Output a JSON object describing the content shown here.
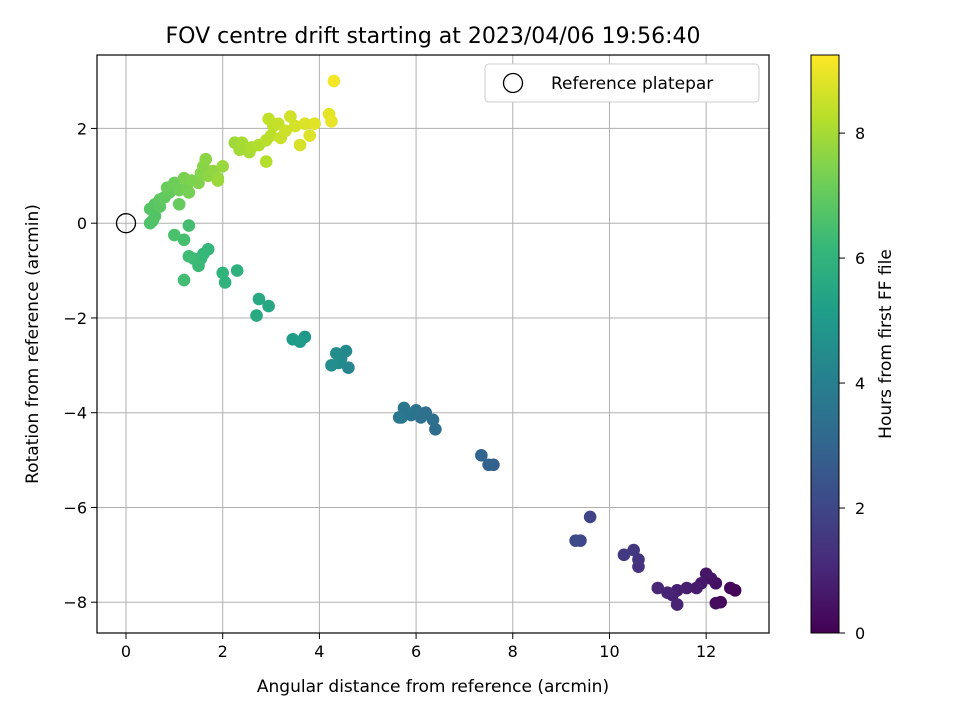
{
  "chart_data": {
    "type": "scatter",
    "title": "FOV centre drift starting at 2023/04/06 19:56:40",
    "xlabel": "Angular distance from reference (arcmin)",
    "ylabel": "Rotation from reference (arcmin)",
    "xlim": [
      -0.6,
      13.3
    ],
    "ylim": [
      -8.65,
      3.55
    ],
    "xticks": [
      0,
      2,
      4,
      6,
      8,
      10,
      12
    ],
    "yticks": [
      -8,
      -6,
      -4,
      -2,
      0,
      2
    ],
    "grid": true,
    "legend": {
      "placement": "top-right",
      "entries": [
        "Reference platepar"
      ]
    },
    "reference_point": {
      "x": 0,
      "y": 0
    },
    "colorbar": {
      "label": "Hours from first FF file",
      "range": [
        0,
        9.25
      ],
      "ticks": [
        0,
        2,
        4,
        6,
        8
      ],
      "colormap": [
        "#440154",
        "#482878",
        "#3e4989",
        "#31688e",
        "#26828e",
        "#1f9e89",
        "#35b779",
        "#6ece58",
        "#b5de2b",
        "#fde725"
      ]
    },
    "series": [
      {
        "points": [
          [
            12.6,
            -7.75,
            0.1
          ],
          [
            12.5,
            -7.7,
            0.2
          ],
          [
            12.3,
            -8.0,
            0.25
          ],
          [
            12.2,
            -8.02,
            0.3
          ],
          [
            12.2,
            -7.6,
            0.4
          ],
          [
            12.1,
            -7.5,
            0.5
          ],
          [
            12.0,
            -7.4,
            0.55
          ],
          [
            11.9,
            -7.6,
            0.6
          ],
          [
            11.8,
            -7.7,
            0.7
          ],
          [
            11.6,
            -7.7,
            0.75
          ],
          [
            11.4,
            -7.75,
            0.8
          ],
          [
            11.3,
            -7.85,
            0.85
          ],
          [
            11.4,
            -8.05,
            0.9
          ],
          [
            11.2,
            -7.8,
            0.95
          ],
          [
            11.0,
            -7.7,
            1.0
          ],
          [
            10.6,
            -7.25,
            1.3
          ],
          [
            10.6,
            -7.1,
            1.4
          ],
          [
            10.5,
            -6.9,
            1.5
          ],
          [
            10.3,
            -7.0,
            1.6
          ],
          [
            9.6,
            -6.2,
            1.9
          ],
          [
            9.4,
            -6.7,
            2.0
          ],
          [
            9.3,
            -6.7,
            2.1
          ],
          [
            7.6,
            -5.1,
            2.8
          ],
          [
            7.5,
            -5.1,
            2.9
          ],
          [
            7.35,
            -4.9,
            3.0
          ],
          [
            6.4,
            -4.35,
            3.3
          ],
          [
            6.35,
            -4.15,
            3.35
          ],
          [
            6.2,
            -4.0,
            3.4
          ],
          [
            6.1,
            -4.1,
            3.45
          ],
          [
            6.0,
            -3.95,
            3.5
          ],
          [
            5.9,
            -4.05,
            3.55
          ],
          [
            5.75,
            -3.9,
            3.6
          ],
          [
            5.7,
            -4.1,
            3.65
          ],
          [
            5.65,
            -4.1,
            3.7
          ],
          [
            4.6,
            -3.05,
            4.3
          ],
          [
            4.55,
            -2.7,
            4.35
          ],
          [
            4.45,
            -2.85,
            4.4
          ],
          [
            4.4,
            -2.95,
            4.45
          ],
          [
            4.35,
            -2.75,
            4.5
          ],
          [
            4.25,
            -3.0,
            4.55
          ],
          [
            3.7,
            -2.4,
            4.9
          ],
          [
            3.6,
            -2.5,
            5.0
          ],
          [
            3.45,
            -2.45,
            5.05
          ],
          [
            2.95,
            -1.75,
            5.5
          ],
          [
            2.75,
            -1.6,
            5.55
          ],
          [
            2.7,
            -1.95,
            5.6
          ],
          [
            2.3,
            -1.0,
            5.9
          ],
          [
            2.05,
            -1.25,
            5.95
          ],
          [
            2.0,
            -1.05,
            6.0
          ],
          [
            1.7,
            -0.55,
            6.1
          ],
          [
            1.6,
            -0.65,
            6.15
          ],
          [
            1.55,
            -0.75,
            6.2
          ],
          [
            1.5,
            -0.9,
            6.25
          ],
          [
            1.4,
            -0.75,
            6.3
          ],
          [
            1.3,
            -0.7,
            6.35
          ],
          [
            1.2,
            -1.2,
            6.4
          ],
          [
            1.3,
            -0.05,
            6.45
          ],
          [
            1.2,
            -0.35,
            6.5
          ],
          [
            1.0,
            -0.25,
            6.55
          ],
          [
            0.5,
            0.0,
            6.6
          ],
          [
            0.55,
            0.05,
            6.65
          ],
          [
            0.6,
            0.15,
            6.7
          ],
          [
            0.5,
            0.3,
            6.75
          ],
          [
            0.6,
            0.4,
            6.8
          ],
          [
            0.7,
            0.35,
            6.85
          ],
          [
            0.7,
            0.5,
            6.9
          ],
          [
            0.8,
            0.55,
            6.95
          ],
          [
            0.9,
            0.65,
            7.0
          ],
          [
            1.1,
            0.4,
            7.05
          ],
          [
            0.85,
            0.75,
            7.1
          ],
          [
            1.0,
            0.85,
            7.15
          ],
          [
            1.1,
            0.7,
            7.2
          ],
          [
            1.25,
            0.75,
            7.25
          ],
          [
            1.3,
            0.65,
            7.3
          ],
          [
            1.2,
            0.95,
            7.35
          ],
          [
            1.35,
            0.9,
            7.4
          ],
          [
            1.5,
            0.85,
            7.45
          ],
          [
            1.55,
            1.05,
            7.5
          ],
          [
            1.6,
            1.2,
            7.55
          ],
          [
            1.65,
            1.35,
            7.6
          ],
          [
            1.7,
            1.0,
            7.65
          ],
          [
            1.8,
            1.1,
            7.7
          ],
          [
            1.9,
            0.95,
            7.75
          ],
          [
            2.0,
            1.2,
            7.8
          ],
          [
            1.9,
            0.9,
            7.85
          ],
          [
            2.25,
            1.7,
            7.9
          ],
          [
            2.35,
            1.55,
            7.95
          ],
          [
            2.4,
            1.7,
            8.0
          ],
          [
            2.55,
            1.5,
            8.05
          ],
          [
            2.6,
            1.6,
            8.1
          ],
          [
            2.75,
            1.65,
            8.15
          ],
          [
            2.9,
            1.3,
            8.2
          ],
          [
            2.9,
            1.75,
            8.25
          ],
          [
            3.0,
            1.85,
            8.3
          ],
          [
            3.05,
            2.05,
            8.35
          ],
          [
            2.95,
            2.2,
            8.4
          ],
          [
            3.15,
            2.1,
            8.45
          ],
          [
            3.2,
            1.8,
            8.5
          ],
          [
            3.3,
            1.95,
            8.55
          ],
          [
            3.4,
            2.25,
            8.6
          ],
          [
            3.5,
            2.05,
            8.65
          ],
          [
            3.6,
            1.65,
            8.7
          ],
          [
            3.7,
            2.1,
            8.75
          ],
          [
            3.8,
            1.85,
            8.8
          ],
          [
            3.9,
            2.1,
            8.85
          ],
          [
            4.2,
            2.3,
            8.9
          ],
          [
            4.25,
            2.15,
            8.95
          ],
          [
            4.3,
            3.0,
            9.1
          ]
        ]
      }
    ]
  }
}
